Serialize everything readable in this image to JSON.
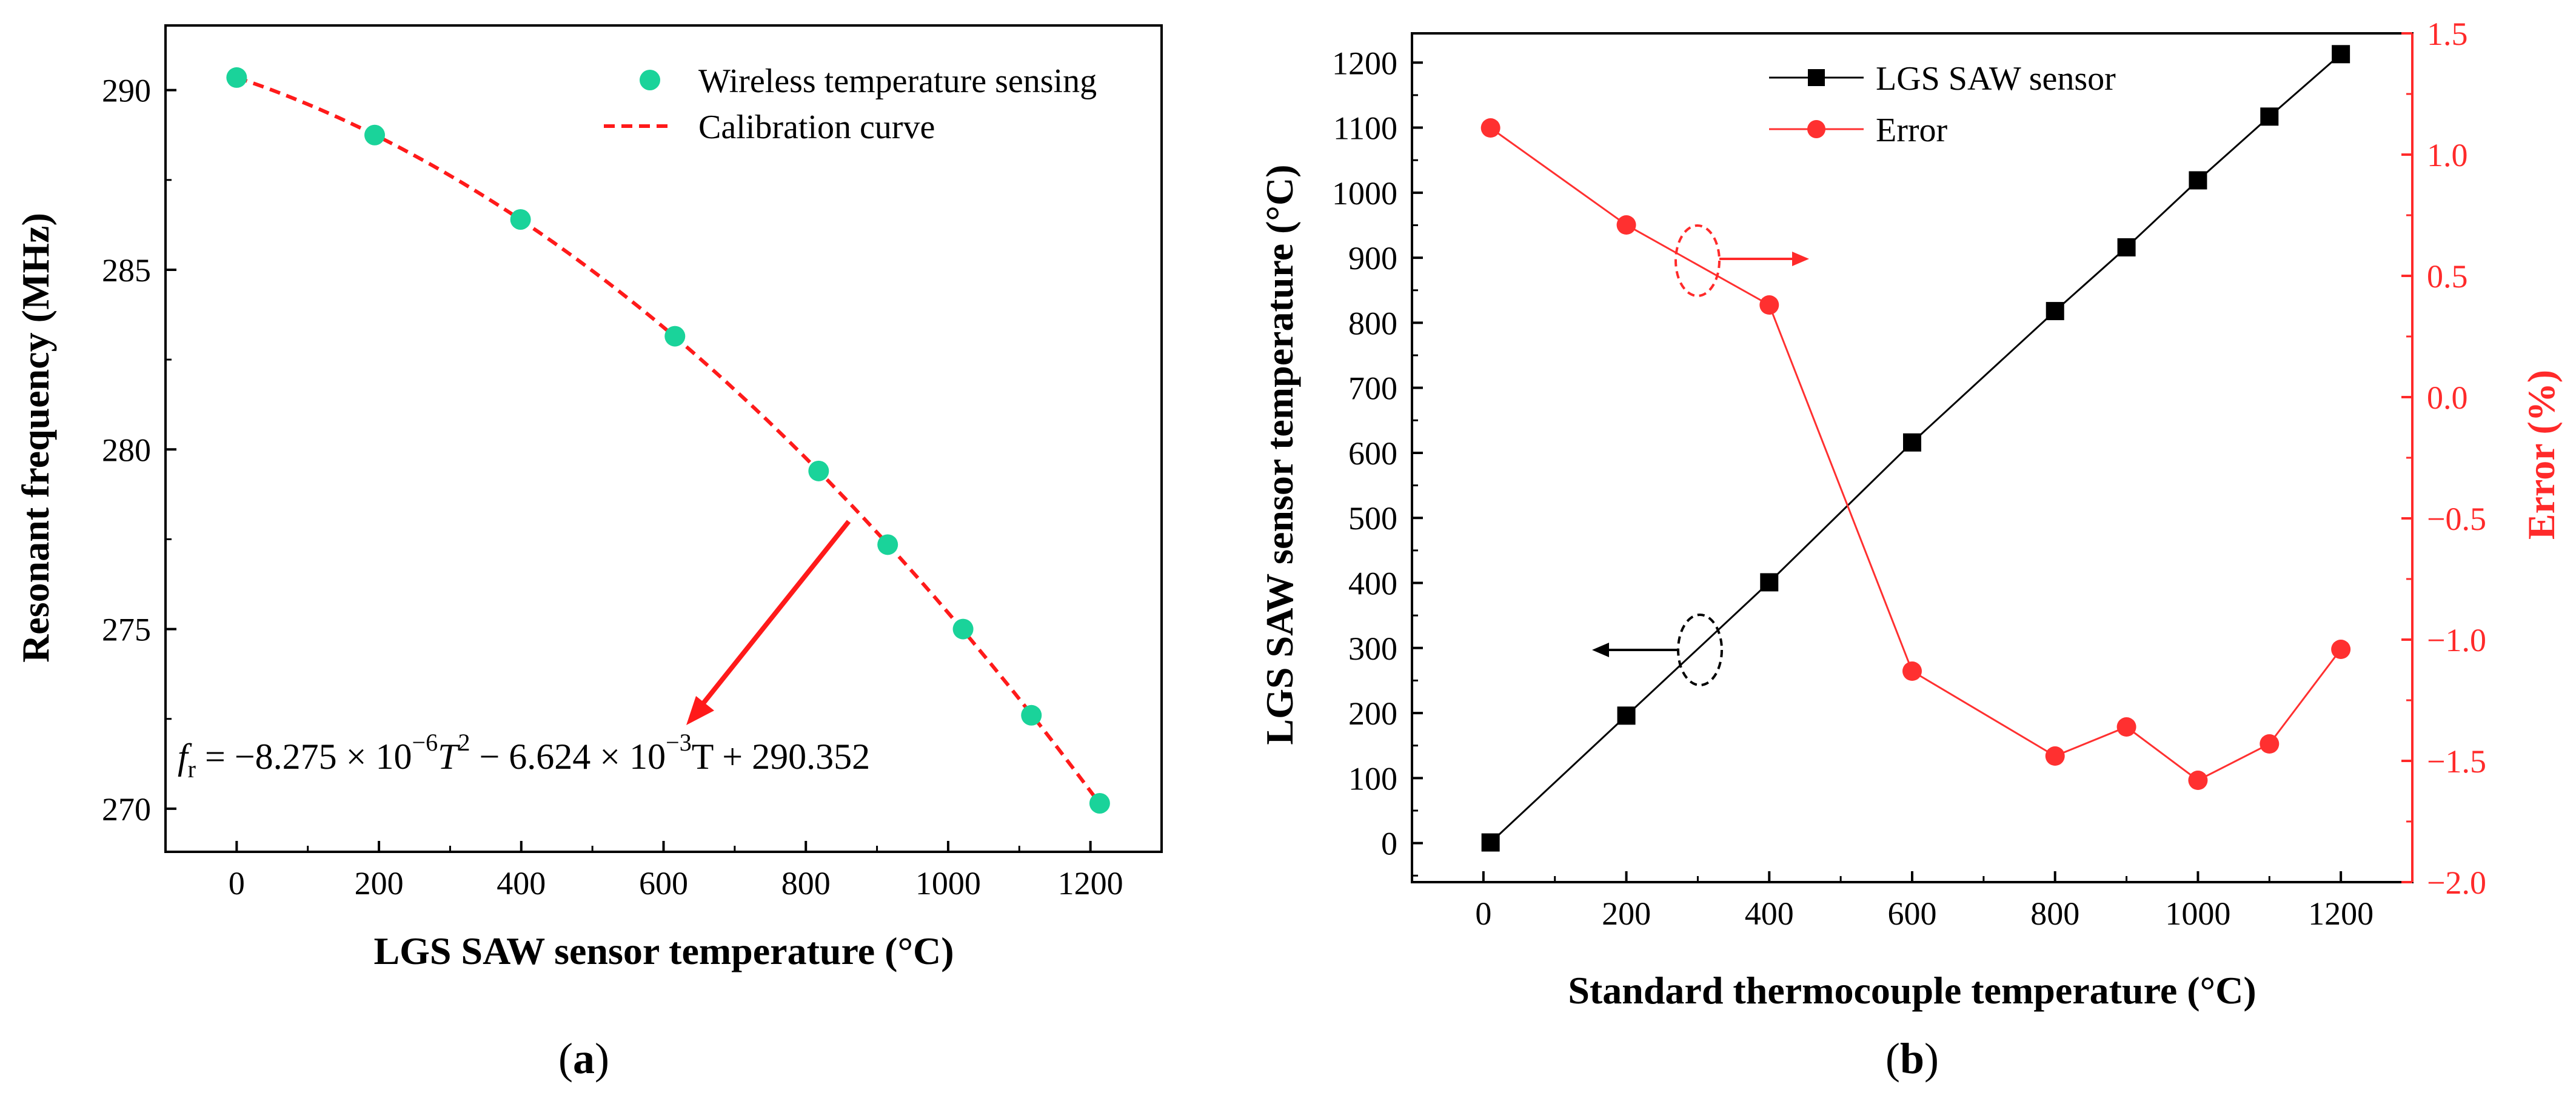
{
  "chart_data": [
    {
      "type": "scatter",
      "panel_label_prefix": "(",
      "panel_label_letter": "a",
      "panel_label_suffix": ")",
      "xlabel": "LGS SAW sensor temperature (°C)",
      "ylabel": "Resonant frequency (MHz)",
      "xlim": [
        -100,
        1300
      ],
      "ylim": [
        268.8,
        291.8
      ],
      "xticks": [
        0,
        200,
        400,
        600,
        800,
        1000,
        1200
      ],
      "yticks": [
        270,
        275,
        280,
        285,
        290
      ],
      "series": [
        {
          "name": "Wireless temperature sensing",
          "kind": "markers",
          "color": "#1ad39a",
          "x": [
            0,
            194,
            399,
            616,
            818,
            915,
            1021,
            1117,
            1213
          ],
          "y": [
            290.35,
            288.75,
            286.4,
            283.15,
            279.4,
            277.35,
            275.0,
            272.6,
            270.15
          ]
        },
        {
          "name": "Calibration curve",
          "kind": "dashed-line",
          "color": "#ff1a1a",
          "coefficients": {
            "a2": -8.275e-06,
            "a1": -0.006624,
            "a0": 290.352
          },
          "x_range": [
            0,
            1215
          ]
        }
      ],
      "annotation": {
        "lhs": "f",
        "lhs_sub": "r",
        "terms": [
          " = −8.275 × 10",
          "−6",
          "T",
          "2",
          " − 6.624 × 10",
          "−3",
          "T + 290.352"
        ],
        "arrow_color": "#ff1a1a"
      }
    },
    {
      "type": "line",
      "panel_label_prefix": "(",
      "panel_label_letter": "b",
      "panel_label_suffix": ")",
      "xlabel": "Standard thermocouple temperature (°C)",
      "ylabel": "LGS SAW sensor temperature (°C)",
      "y2label": "Error (%)",
      "xlim": [
        -100,
        1300
      ],
      "ylim": [
        -60,
        1245
      ],
      "y2lim": [
        -2.0,
        1.5
      ],
      "xticks": [
        0,
        200,
        400,
        600,
        800,
        1000,
        1200
      ],
      "yticks": [
        0,
        100,
        200,
        300,
        400,
        500,
        600,
        700,
        800,
        900,
        1000,
        1100,
        1200
      ],
      "y2ticks": [
        -2.0,
        -1.5,
        -1.0,
        -0.5,
        0.0,
        0.5,
        1.0,
        1.5
      ],
      "y2tick_labels": [
        "−2.0",
        "−1.5",
        "−1.0",
        "−0.5",
        "0.0",
        "0.5",
        "1.0",
        "1.5"
      ],
      "y2_color": "#ff2a2a",
      "series": [
        {
          "name": "LGS SAW sensor",
          "axis": "left",
          "marker": "square",
          "color": "#000000",
          "x": [
            10,
            200,
            400,
            600,
            800,
            900,
            1000,
            1100,
            1200
          ],
          "y": [
            1,
            196,
            401,
            616,
            818,
            916,
            1019,
            1117,
            1213
          ]
        },
        {
          "name": "Error",
          "axis": "right",
          "marker": "circle",
          "color": "#ff3030",
          "x": [
            10,
            200,
            400,
            600,
            800,
            900,
            1000,
            1100,
            1200
          ],
          "y": [
            1.11,
            0.71,
            0.38,
            -1.13,
            -1.48,
            -1.36,
            -1.58,
            -1.43,
            -1.04
          ]
        }
      ]
    }
  ]
}
